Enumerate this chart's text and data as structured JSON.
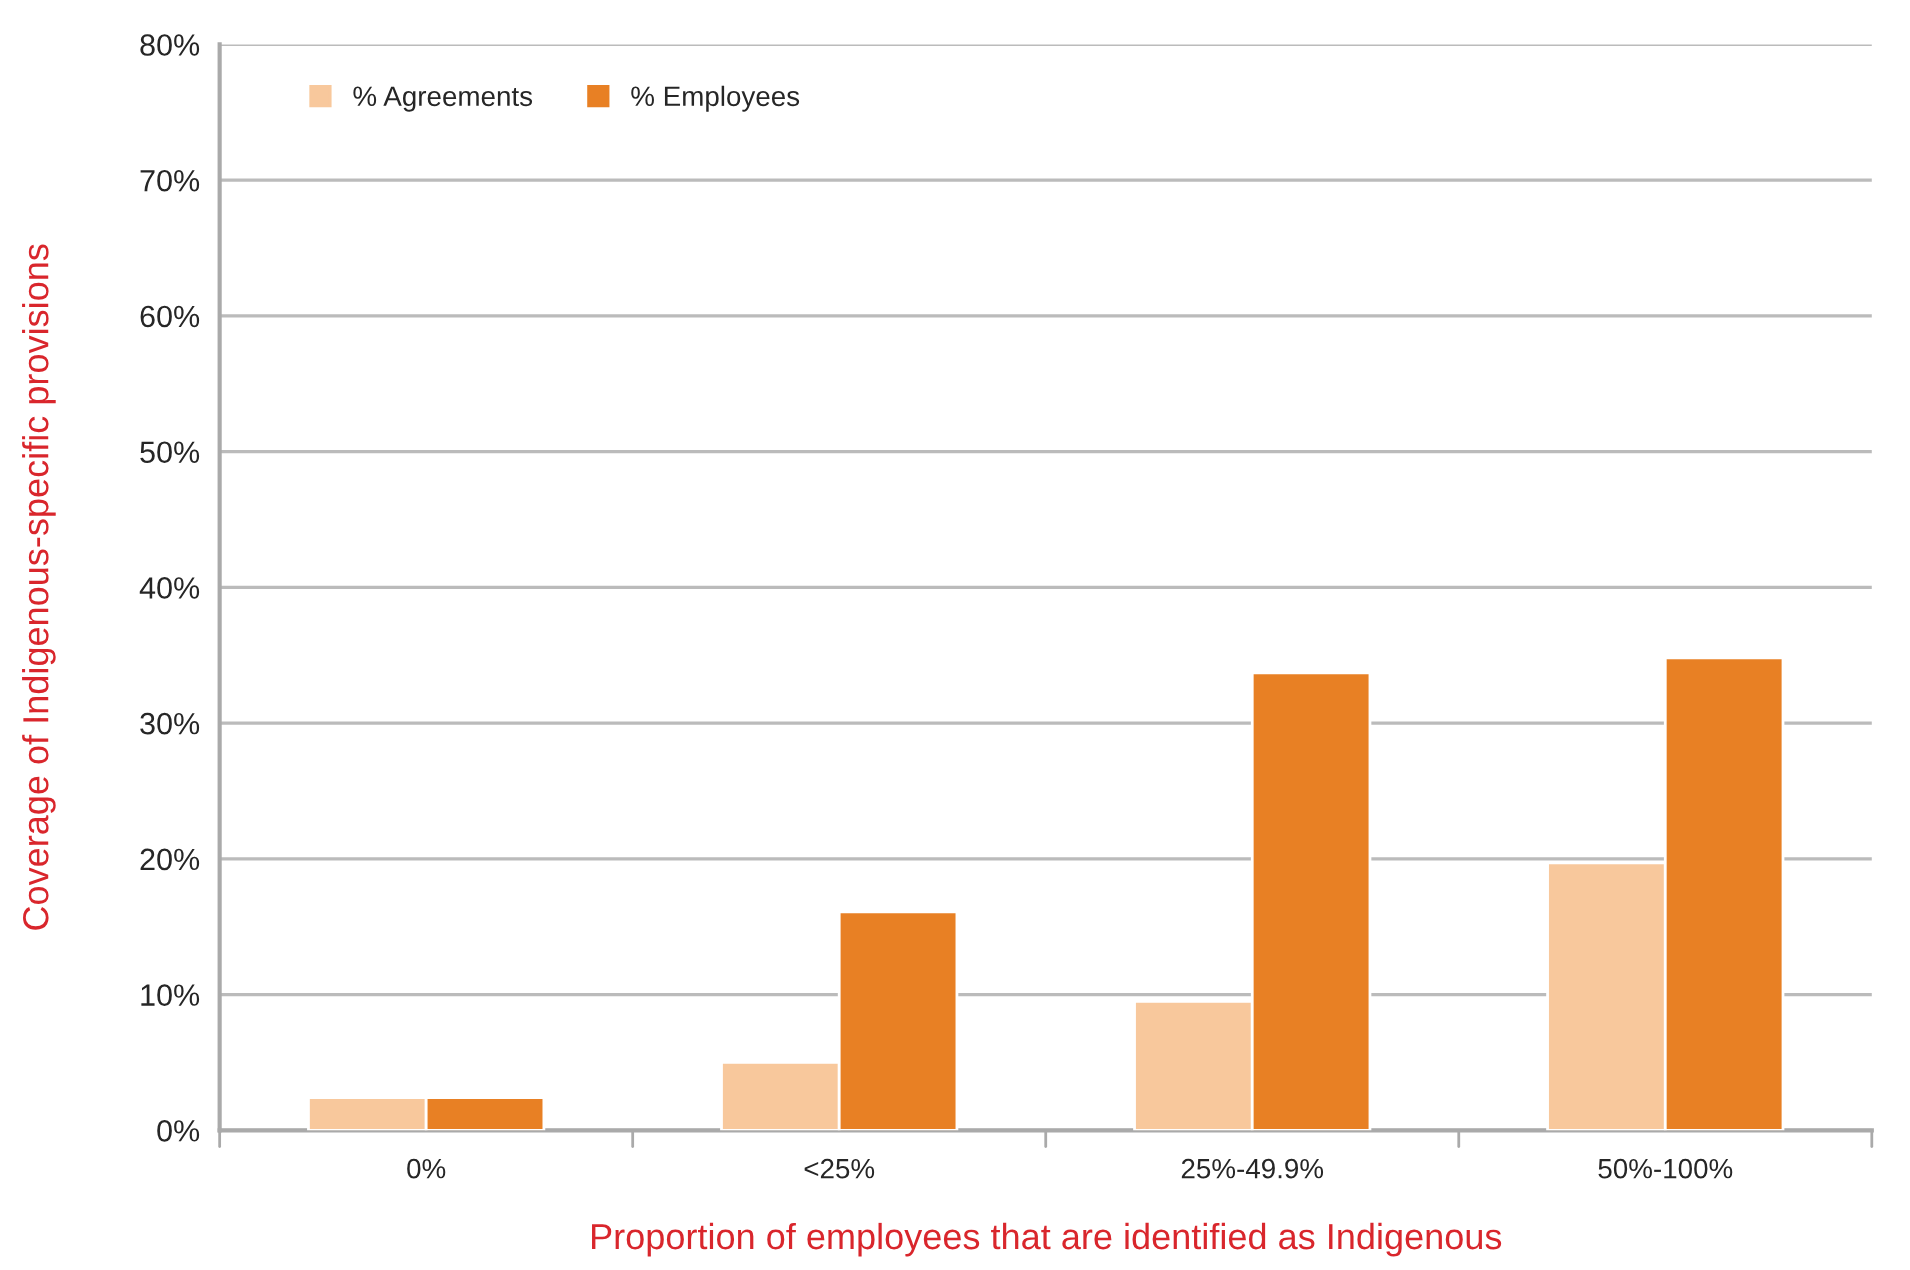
{
  "chart_data": {
    "type": "bar",
    "xlabel": "Proportion of employees that are identified as Indigenous",
    "ylabel": "Coverage of Indigenous-specific provisions",
    "categories": [
      "0%",
      "<25%",
      "25%-49.9%",
      "50%-100%"
    ],
    "series": [
      {
        "name": "% Agreements",
        "color": "#f8c89c",
        "values": [
          2.4,
          5.0,
          9.5,
          19.7
        ]
      },
      {
        "name": "% Employees",
        "color": "#e88024",
        "values": [
          2.4,
          16.1,
          33.7,
          34.8
        ]
      }
    ],
    "ylim": [
      0,
      80
    ],
    "yticks": [
      {
        "value": 0,
        "label": "0%"
      },
      {
        "value": 10,
        "label": "10%"
      },
      {
        "value": 20,
        "label": "20%"
      },
      {
        "value": 30,
        "label": "30%"
      },
      {
        "value": 40,
        "label": "40%"
      },
      {
        "value": 50,
        "label": "50%"
      },
      {
        "value": 60,
        "label": "60%"
      },
      {
        "value": 70,
        "label": "70%"
      },
      {
        "value": 80,
        "label": "80%"
      }
    ],
    "grid": "y",
    "legend": "top left"
  }
}
